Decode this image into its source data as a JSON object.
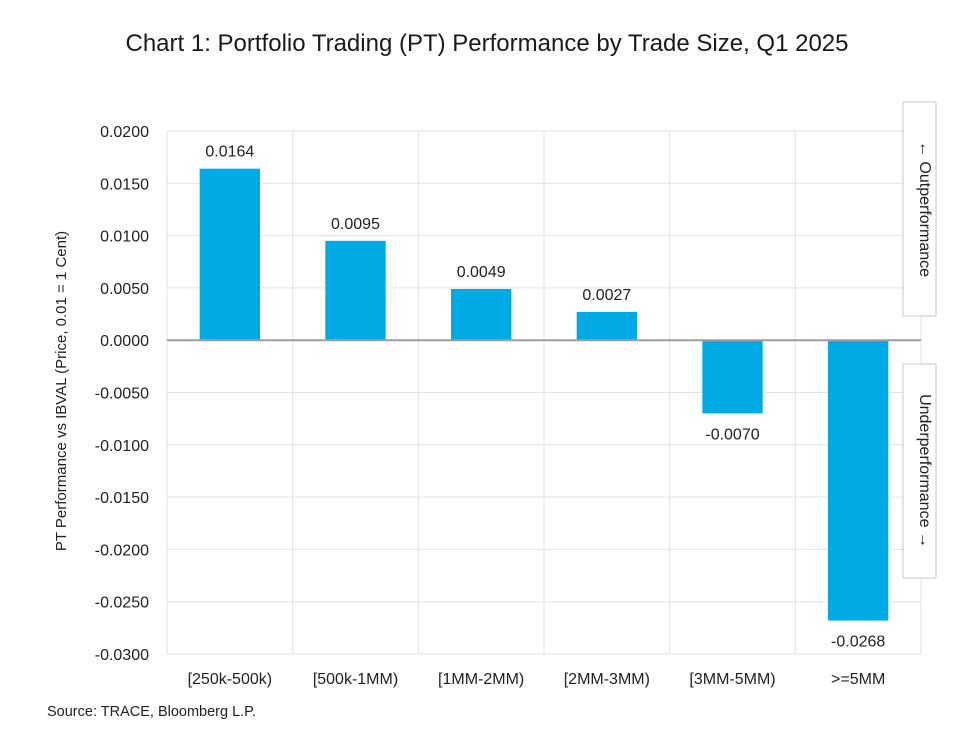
{
  "title": "Chart 1: Portfolio Trading (PT) Performance by Trade Size, Q1 2025",
  "source": "Source: TRACE, Bloomberg L.P.",
  "annotations": {
    "outperformance": "← Outperformance",
    "underperformance": "Underperformance →"
  },
  "colors": {
    "bar": "#00aae4",
    "grid": "#e3e3e3",
    "zero_line": "#9e9e9e"
  },
  "chart_data": {
    "type": "bar",
    "title": "Chart 1: Portfolio Trading (PT) Performance by Trade Size, Q1 2025",
    "xlabel": "",
    "ylabel": "PT Performance vs IBVAL (Price, 0.01 = 1 Cent)",
    "categories": [
      "[250k-500k)",
      "[500k-1MM)",
      "[1MM-2MM)",
      "[2MM-3MM)",
      "[3MM-5MM)",
      ">=5MM"
    ],
    "values": [
      0.0164,
      0.0095,
      0.0049,
      0.0027,
      -0.007,
      -0.0268
    ],
    "data_labels": [
      "0.0164",
      "0.0095",
      "0.0049",
      "0.0027",
      "-0.0070",
      "-0.0268"
    ],
    "ylim": [
      -0.03,
      0.02
    ],
    "yticks": [
      0.02,
      0.015,
      0.01,
      0.005,
      0.0,
      -0.005,
      -0.01,
      -0.015,
      -0.02,
      -0.025,
      -0.03
    ],
    "ytick_labels": [
      "0.0200",
      "0.0150",
      "0.0100",
      "0.0050",
      "0.0000",
      "-0.0050",
      "-0.0100",
      "-0.0150",
      "-0.0200",
      "-0.0250",
      "-0.0300"
    ],
    "grid": true
  }
}
